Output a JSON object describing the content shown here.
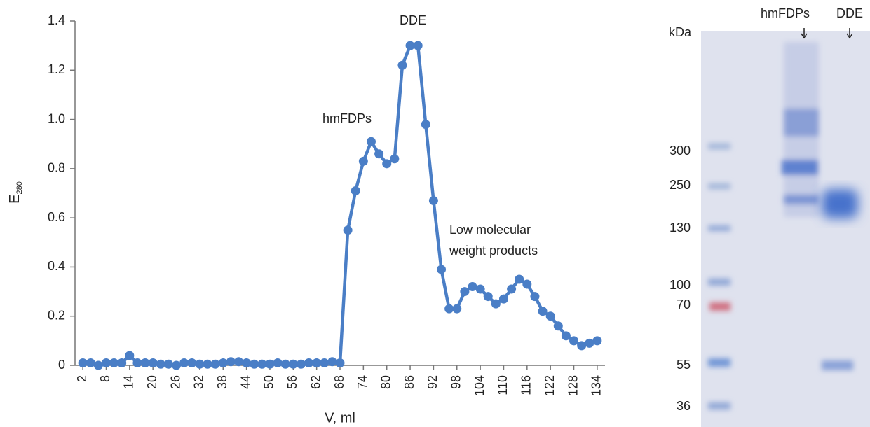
{
  "chart_data": {
    "type": "line",
    "x_label": "V, ml",
    "y_label": "E",
    "y_label_subscript": "280",
    "x": [
      2,
      4,
      6,
      8,
      10,
      12,
      14,
      16,
      18,
      20,
      22,
      24,
      26,
      28,
      30,
      32,
      34,
      36,
      38,
      40,
      42,
      44,
      46,
      48,
      50,
      52,
      54,
      56,
      58,
      60,
      62,
      64,
      66,
      68,
      70,
      72,
      74,
      76,
      78,
      80,
      82,
      84,
      86,
      88,
      90,
      92,
      94,
      96,
      98,
      100,
      102,
      104,
      106,
      108,
      110,
      112,
      114,
      116,
      118,
      120,
      122,
      124,
      126,
      128,
      130,
      132,
      134
    ],
    "series": [
      {
        "color": "#4a7ec6",
        "values": [
          0.01,
          0.01,
          0,
          0.01,
          0.01,
          0.01,
          0.04,
          0.01,
          0.01,
          0.01,
          0.005,
          0.005,
          0,
          0.01,
          0.01,
          0.005,
          0.005,
          0.005,
          0.01,
          0.015,
          0.015,
          0.01,
          0.005,
          0.005,
          0.005,
          0.01,
          0.005,
          0.005,
          0.005,
          0.01,
          0.01,
          0.01,
          0.015,
          0.01,
          0.55,
          0.71,
          0.83,
          0.91,
          0.86,
          0.82,
          0.84,
          1.22,
          1.3,
          1.3,
          0.98,
          0.67,
          0.39,
          0.23,
          0.23,
          0.3,
          0.32,
          0.31,
          0.28,
          0.25,
          0.27,
          0.31,
          0.35,
          0.33,
          0.28,
          0.22,
          0.2,
          0.16,
          0.12,
          0.1,
          0.08,
          0.09,
          0.1
        ]
      }
    ],
    "xlim": [
      0,
      136
    ],
    "xticks": [
      2,
      8,
      14,
      20,
      26,
      32,
      38,
      44,
      50,
      56,
      62,
      68,
      74,
      80,
      86,
      92,
      98,
      104,
      110,
      116,
      122,
      128,
      134
    ],
    "ylim": [
      0,
      1.4
    ],
    "yticks": [
      0,
      0.2,
      0.4,
      0.6,
      0.8,
      {
        "value": 1,
        "label": "1.0"
      },
      1.2,
      1.4
    ],
    "annotations": [
      "hmFDPs",
      "DDE",
      [
        "Low molecular",
        "weight products"
      ]
    ]
  },
  "gel": {
    "unit": "kDa",
    "lanes": [
      "hmFDPs",
      "DDE"
    ],
    "markers": [
      300,
      250,
      130,
      100,
      70,
      55,
      36
    ]
  }
}
